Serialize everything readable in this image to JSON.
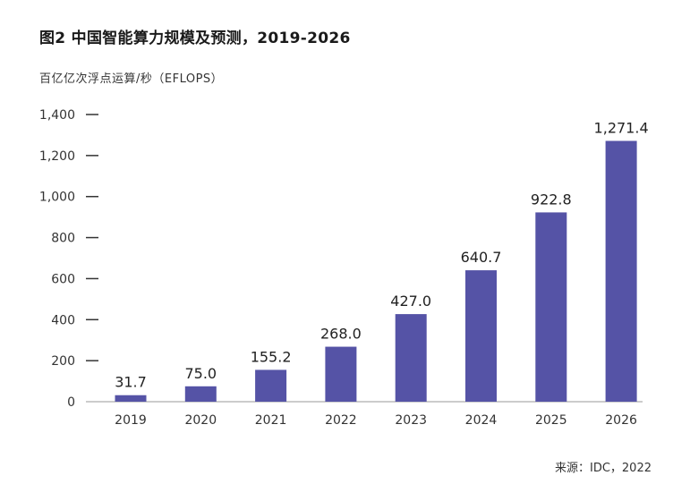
{
  "header": {
    "title": "图2 中国智能算力规模及预测，2019-2026",
    "unit": "百亿亿次浮点运算/秒（EFLOPS）"
  },
  "footer": {
    "source": "来源：IDC，2022"
  },
  "chart_data": {
    "type": "bar",
    "categories": [
      "2019",
      "2020",
      "2021",
      "2022",
      "2023",
      "2024",
      "2025",
      "2026"
    ],
    "values": [
      31.7,
      75.0,
      155.2,
      268.0,
      427.0,
      640.7,
      922.8,
      1271.4
    ],
    "value_labels": [
      "31.7",
      "75.0",
      "155.2",
      "268.0",
      "427.0",
      "640.7",
      "922.8",
      "1,271.4"
    ],
    "title": "图2 中国智能算力规模及预测，2019-2026",
    "ylabel": "百亿亿次浮点运算/秒（EFLOPS）",
    "xlabel": "",
    "ylim": [
      0,
      1400
    ],
    "yticks": [
      0,
      200,
      400,
      600,
      800,
      1000,
      1200,
      1400
    ],
    "ytick_labels": [
      "0",
      "200",
      "400",
      "600",
      "800",
      "1,000",
      "1,200",
      "1,400"
    ],
    "grid": false,
    "bar_color": "#5553a6"
  }
}
